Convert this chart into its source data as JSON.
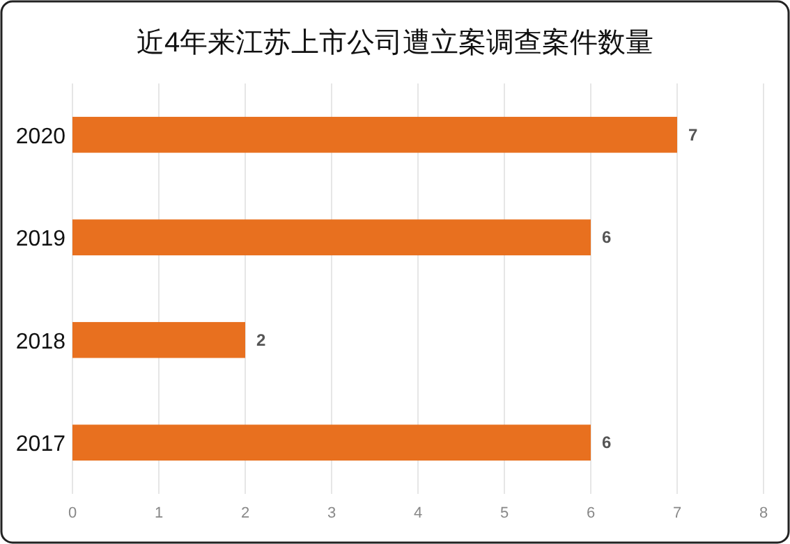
{
  "chart_data": {
    "type": "bar",
    "orientation": "horizontal",
    "title": "近4年来江苏上市公司遭立案调查案件数量",
    "categories": [
      "2020",
      "2019",
      "2018",
      "2017"
    ],
    "values": [
      7,
      6,
      2,
      6
    ],
    "color": "#e8701f",
    "xlim": [
      0,
      8
    ],
    "xticks": [
      0,
      1,
      2,
      3,
      4,
      5,
      6,
      7,
      8
    ],
    "grid": "x",
    "data_labels": true
  }
}
